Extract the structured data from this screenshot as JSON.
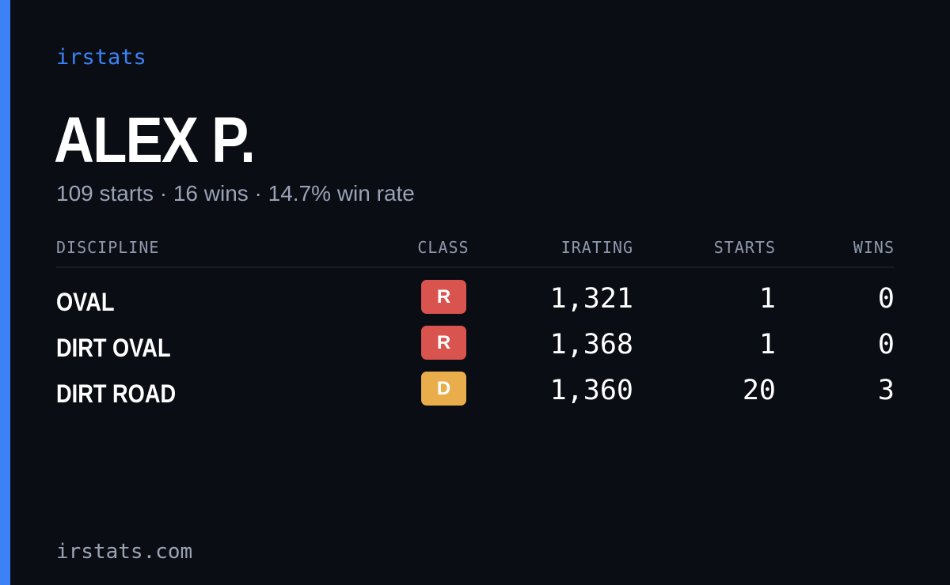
{
  "brand": "irstats",
  "driver": {
    "name": "ALEX P.",
    "summary": "109 starts · 16 wins · 14.7% win rate"
  },
  "table": {
    "headers": {
      "discipline": "DISCIPLINE",
      "class": "CLASS",
      "irating": "IRATING",
      "starts": "STARTS",
      "wins": "WINS"
    },
    "rows": [
      {
        "discipline": "OVAL",
        "class": "R",
        "class_color": "#d9534f",
        "irating": "1,321",
        "starts": "1",
        "wins": "0"
      },
      {
        "discipline": "DIRT OVAL",
        "class": "R",
        "class_color": "#d9534f",
        "irating": "1,368",
        "starts": "1",
        "wins": "0"
      },
      {
        "discipline": "DIRT ROAD",
        "class": "D",
        "class_color": "#e9ad4c",
        "irating": "1,360",
        "starts": "20",
        "wins": "3"
      }
    ]
  },
  "footer": "irstats.com",
  "colors": {
    "background": "#0a0d14",
    "accent": "#3b82f6",
    "muted_text": "#9aa3b5"
  }
}
